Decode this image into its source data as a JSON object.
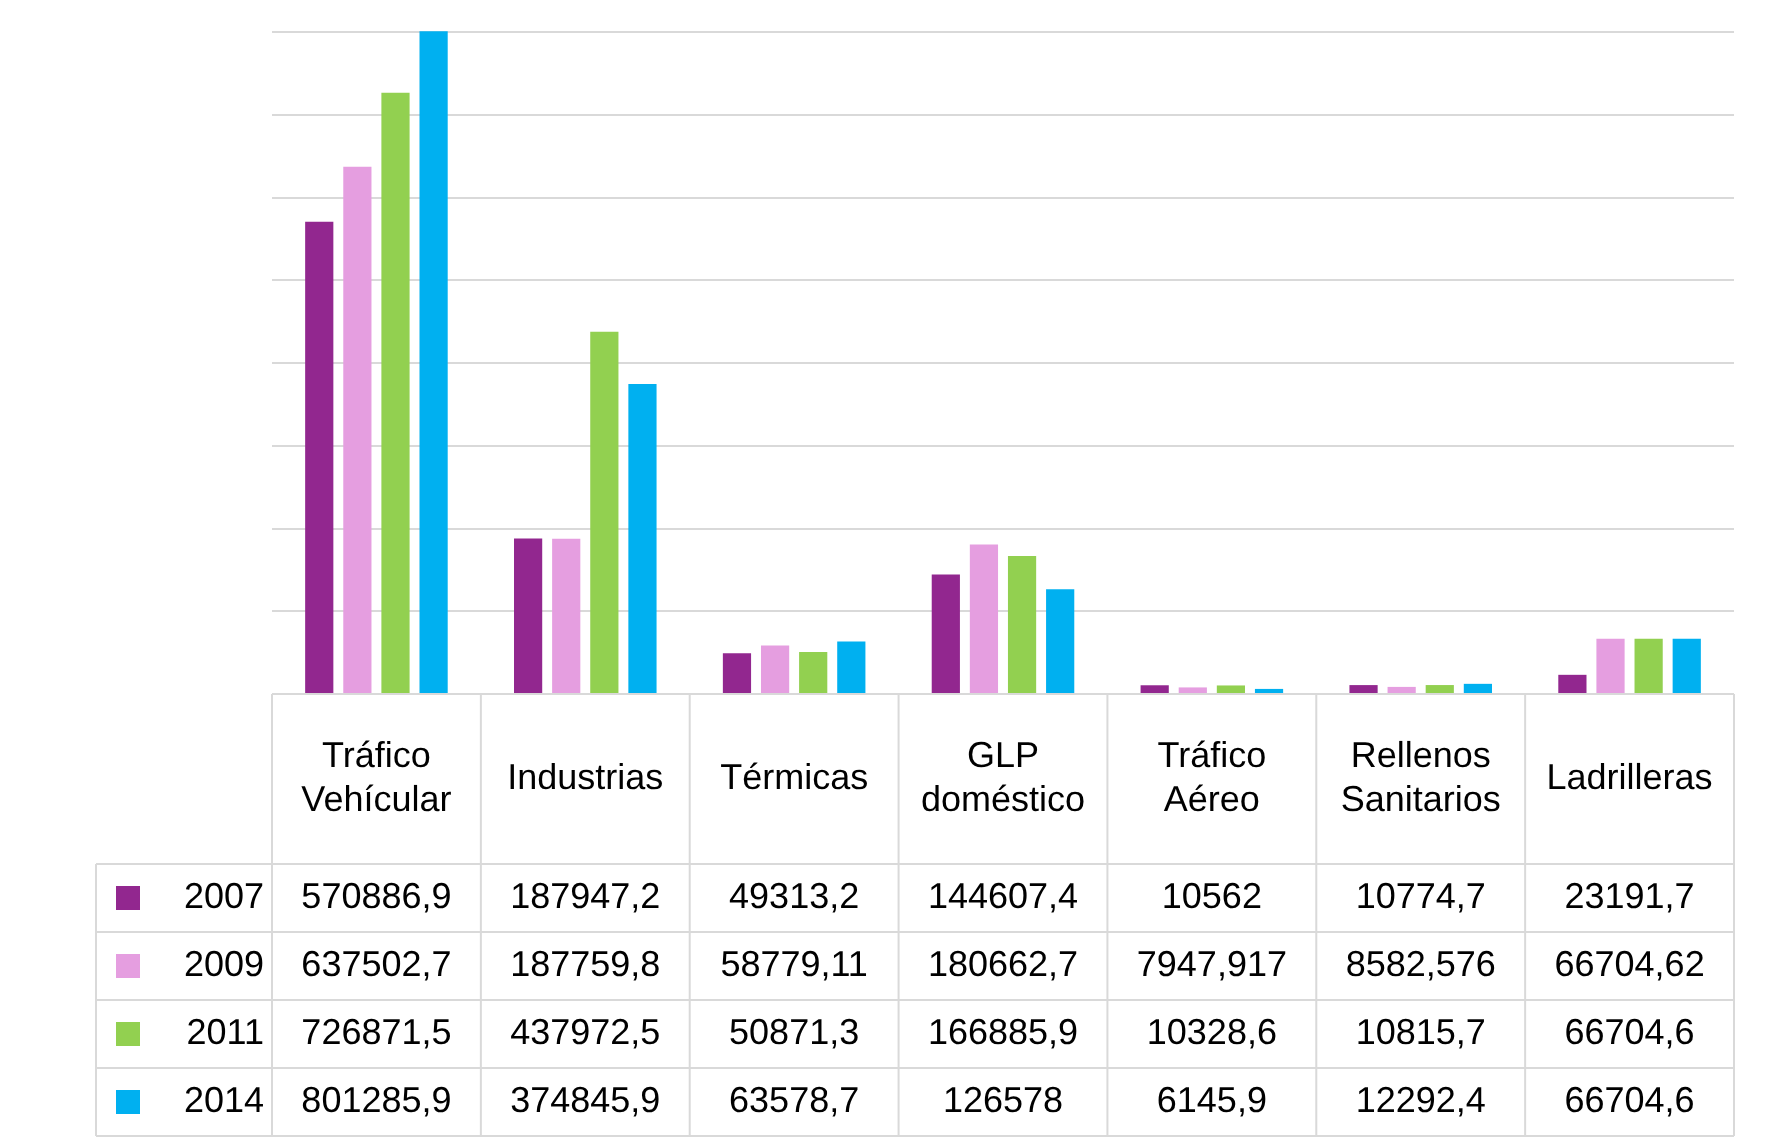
{
  "chart_data": {
    "type": "bar",
    "categories": [
      "Tráfico Vehícular",
      "Industrias",
      "Térmicas",
      "GLP doméstico",
      "Tráfico Aéreo",
      "Rellenos Sanitarios",
      "Ladrilleras"
    ],
    "ylim": [
      0,
      810000
    ],
    "yticks": [
      {
        "value": 0,
        "label": null
      },
      {
        "value": 100000,
        "label": null
      },
      {
        "value": 200000,
        "label": null
      },
      {
        "value": 300000,
        "label": null
      },
      {
        "value": 400000,
        "label": null
      },
      {
        "value": 500000,
        "label": null
      },
      {
        "value": 600000,
        "label": null
      },
      {
        "value": 700000,
        "label": null
      },
      {
        "value": 800000,
        "label": null
      }
    ],
    "grid": "y",
    "tick_labels": false,
    "legend": "bottom left",
    "series": [
      {
        "name": "2007",
        "color": "#92278f",
        "values": [
          570886.9,
          187947.2,
          49313.2,
          144607.4,
          10562,
          10774.7,
          23191.7
        ],
        "value_labels": [
          "570886,9",
          "187947,2",
          "49313,2",
          "144607,4",
          "10562",
          "10774,7",
          "23191,7"
        ]
      },
      {
        "name": "2009",
        "color": "#e59ee0",
        "values": [
          637502.7,
          187759.8,
          58779.11,
          180662.7,
          7947.917,
          8582.576,
          66704.62
        ],
        "value_labels": [
          "637502,7",
          "187759,8",
          "58779,11",
          "180662,7",
          "7947,917",
          "8582,576",
          "66704,62"
        ]
      },
      {
        "name": "2011",
        "color": "#92d050",
        "values": [
          726871.5,
          437972.5,
          50871.3,
          166885.9,
          10328.6,
          10815.7,
          66704.6
        ],
        "value_labels": [
          "726871,5",
          "437972,5",
          "50871,3",
          "166885,9",
          "10328,6",
          "10815,7",
          "66704,6"
        ]
      },
      {
        "name": "2014",
        "color": "#00b0f0",
        "values": [
          801285.9,
          374845.9,
          63578.7,
          126578,
          6145.9,
          12292.4,
          66704.6
        ],
        "value_labels": [
          "801285,9",
          "374845,9",
          "63578,7",
          "126578",
          "6145,9",
          "12292,4",
          "66704,6"
        ]
      }
    ]
  }
}
